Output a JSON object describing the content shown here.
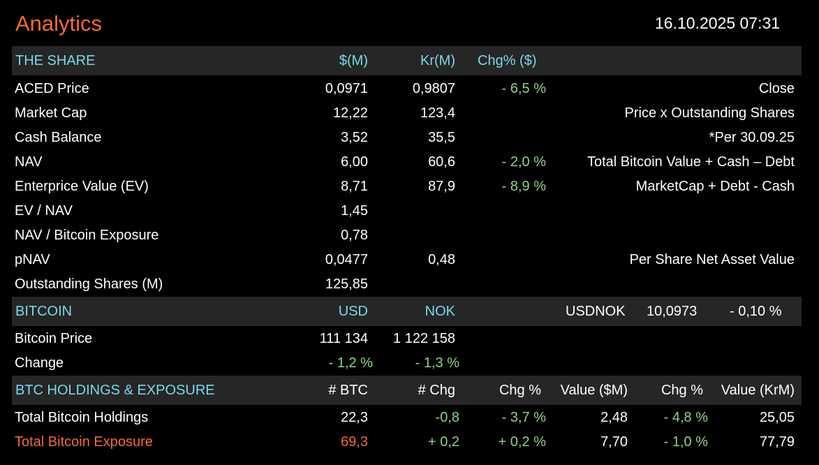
{
  "header": {
    "title": "Analytics",
    "timestamp": "16.10.2025 07:31"
  },
  "colors": {
    "background": "#000000",
    "title": "#f26b33",
    "section_header_bg": "#262626",
    "section_header_text": "#7ad9ea",
    "positive": "#8fd18a",
    "highlight": "#f26b33"
  },
  "share": {
    "header": {
      "title": "THE SHARE",
      "col_usd": "$(M)",
      "col_nok": "Kr(M)",
      "col_chg": "Chg% ($)"
    },
    "rows": [
      {
        "label": "ACED Price",
        "usd": "0,0971",
        "nok": "0,9807",
        "chg": "- 6,5 %",
        "note": "Close"
      },
      {
        "label": "Market Cap",
        "usd": "12,22",
        "nok": "123,4",
        "chg": "",
        "note": "Price x Outstanding Shares"
      },
      {
        "label": "Cash Balance",
        "usd": "3,52",
        "nok": "35,5",
        "chg": "",
        "note": "*Per 30.09.25"
      },
      {
        "label": "NAV",
        "usd": "6,00",
        "nok": "60,6",
        "chg": "- 2,0 %",
        "note": "Total Bitcoin Value + Cash – Debt"
      },
      {
        "label": "Enterprice Value (EV)",
        "usd": "8,71",
        "nok": "87,9",
        "chg": "- 8,9 %",
        "note": "MarketCap + Debt - Cash"
      },
      {
        "label": "EV / NAV",
        "usd": "1,45",
        "nok": "",
        "chg": "",
        "note": ""
      },
      {
        "label": "NAV / Bitcoin Exposure",
        "usd": "0,78",
        "nok": "",
        "chg": "",
        "note": ""
      },
      {
        "label": "pNAV",
        "usd": "0,0477",
        "nok": "0,48",
        "chg": "",
        "note": "Per Share Net Asset Value"
      },
      {
        "label": "Outstanding Shares (M)",
        "usd": "125,85",
        "nok": "",
        "chg": "",
        "note": ""
      }
    ]
  },
  "bitcoin": {
    "header": {
      "title": "BITCOIN",
      "col_usd": "USD",
      "col_nok": "NOK",
      "fx_label": "USDNOK",
      "fx_value": "10,0973",
      "fx_change": "- 0,10 %"
    },
    "rows": [
      {
        "label": "Bitcoin Price",
        "usd": "111 134",
        "nok": "1 122 158"
      },
      {
        "label": "Change",
        "usd": "- 1,2 %",
        "nok": "- 1,3 %"
      }
    ]
  },
  "holdings": {
    "header": {
      "title": "BTC HOLDINGS & EXPOSURE",
      "col_btc": "# BTC",
      "col_chg": "# Chg",
      "col_chg_pct": "Chg %",
      "col_value_usd": "Value ($M)",
      "col_chg_pct2": "Chg %",
      "col_value_nok": "Value (KrM)"
    },
    "rows": [
      {
        "label": "Total Bitcoin Holdings",
        "btc": "22,3",
        "chg": "-0,8",
        "chg_pct": "- 3,7 %",
        "value_usd": "2,48",
        "chg_pct2": "- 4,8 %",
        "value_nok": "25,05"
      },
      {
        "label": "Total Bitcoin Exposure",
        "btc": "69,3",
        "chg": "+ 0,2",
        "chg_pct": "+ 0,2 %",
        "value_usd": "7,70",
        "chg_pct2": "- 1,0 %",
        "value_nok": "77,79"
      }
    ]
  }
}
